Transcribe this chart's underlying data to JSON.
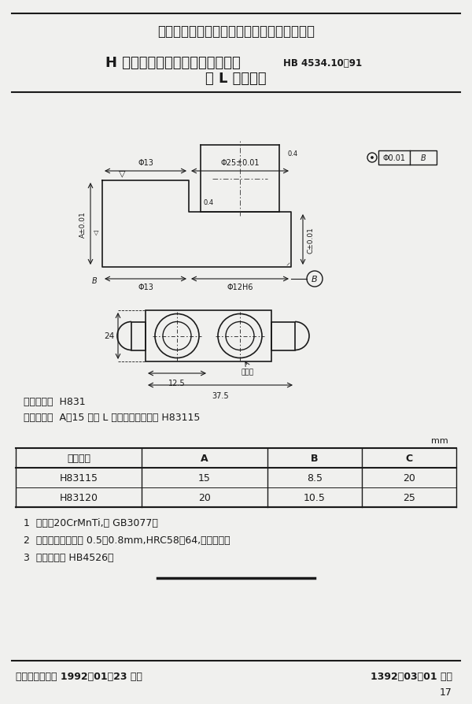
{
  "title_main": "中华人民共和国航空航天工业部航空工业标准",
  "title_part1": "H 型孔系组合夹具成组定位夹紧件",
  "title_part1_suffix": "HB 4534.10－91",
  "title_part2": "单 L 形定位器",
  "bg_color": "#f0f0ee",
  "text_color": "#1a1a1a",
  "category_code": "分类代号：  H831",
  "example_label": "标记示例：  A＝15 的单 L 形定位器的标记为 H83115",
  "table_headers": [
    "标记代号",
    "A",
    "B",
    "C"
  ],
  "table_rows": [
    [
      "H83115",
      "15",
      "8.5",
      "20"
    ],
    [
      "H83120",
      "20",
      "10.5",
      "25"
    ]
  ],
  "note1": "1  材料：20CrMnTi,按 GB3077。",
  "note2": "2  热处理：渗碳深度 0.5～0.8mm,HRC58～64,人工时效。",
  "note3": "3  技术条件按 HB4526。",
  "footer_left": "航空航天工业部 1992－01－23 发布",
  "footer_right": "1392－03－01 实施",
  "page_num": "17",
  "unit_label": "mm"
}
